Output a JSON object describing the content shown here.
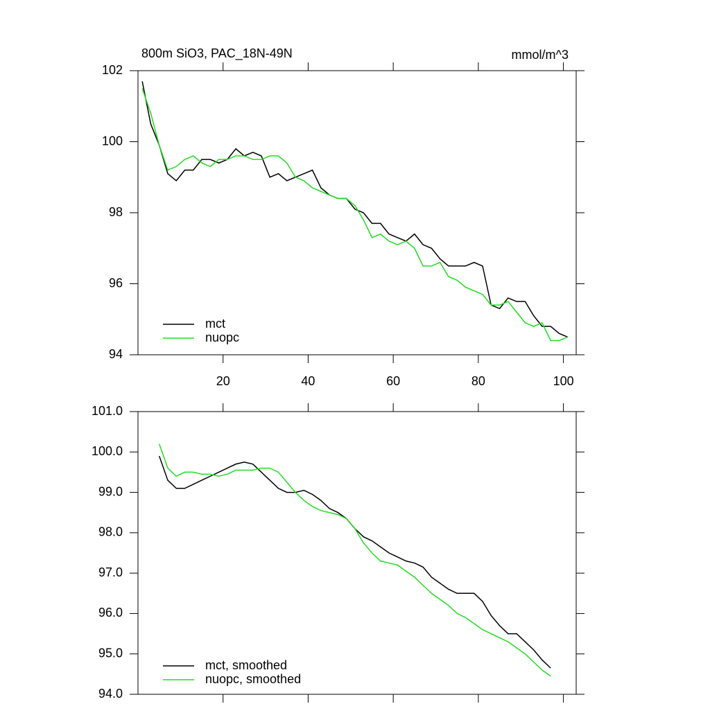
{
  "chart_data": [
    {
      "type": "line",
      "title": "800m SiO3, PAC_18N-49N",
      "units": "mmol/m^3",
      "x": [
        1,
        3,
        5,
        7,
        9,
        11,
        13,
        15,
        17,
        19,
        21,
        23,
        25,
        27,
        29,
        31,
        33,
        35,
        37,
        39,
        41,
        43,
        45,
        47,
        49,
        51,
        53,
        55,
        57,
        59,
        61,
        63,
        65,
        67,
        69,
        71,
        73,
        75,
        77,
        79,
        81,
        83,
        85,
        87,
        89,
        91,
        93,
        95,
        97,
        99,
        101
      ],
      "xlim": [
        0,
        103
      ],
      "xticks": [
        20,
        40,
        60,
        80,
        100
      ],
      "show_xtick_labels": true,
      "ylim": [
        94,
        102
      ],
      "yticks": [
        94,
        96,
        98,
        100,
        102
      ],
      "series": [
        {
          "name": "mct",
          "color": "#000000",
          "values": [
            101.7,
            100.5,
            99.9,
            99.1,
            98.9,
            99.2,
            99.2,
            99.5,
            99.5,
            99.4,
            99.5,
            99.8,
            99.6,
            99.7,
            99.6,
            99.0,
            99.1,
            98.9,
            99.0,
            99.1,
            99.2,
            98.7,
            98.5,
            98.4,
            98.4,
            98.1,
            98.0,
            97.7,
            97.7,
            97.4,
            97.3,
            97.2,
            97.4,
            97.1,
            97.0,
            96.7,
            96.5,
            96.5,
            96.5,
            96.6,
            96.5,
            95.4,
            95.3,
            95.6,
            95.5,
            95.5,
            95.1,
            94.8,
            94.8,
            94.6,
            94.5
          ]
        },
        {
          "name": "nuopc",
          "color": "#22dd22",
          "values": [
            101.5,
            100.8,
            99.9,
            99.2,
            99.3,
            99.5,
            99.6,
            99.4,
            99.3,
            99.5,
            99.5,
            99.6,
            99.6,
            99.5,
            99.5,
            99.6,
            99.6,
            99.4,
            99.0,
            98.9,
            98.7,
            98.6,
            98.5,
            98.4,
            98.4,
            98.2,
            97.8,
            97.3,
            97.4,
            97.2,
            97.1,
            97.2,
            97.0,
            96.5,
            96.5,
            96.6,
            96.2,
            96.1,
            95.9,
            95.8,
            95.7,
            95.4,
            95.4,
            95.5,
            95.2,
            94.9,
            94.8,
            94.9,
            94.4,
            94.4,
            94.5
          ]
        }
      ]
    },
    {
      "type": "line",
      "x": [
        1,
        3,
        5,
        7,
        9,
        11,
        13,
        15,
        17,
        19,
        21,
        23,
        25,
        27,
        29,
        31,
        33,
        35,
        37,
        39,
        41,
        43,
        45,
        47,
        49,
        51,
        53,
        55,
        57,
        59,
        61,
        63,
        65,
        67,
        69,
        71,
        73,
        75,
        77,
        79,
        81,
        83,
        85,
        87,
        89,
        91,
        93,
        95,
        97,
        99,
        101
      ],
      "xlim": [
        0,
        103
      ],
      "xticks": [
        20,
        40,
        60,
        80,
        100
      ],
      "show_xtick_labels": false,
      "ylim": [
        94,
        101
      ],
      "yticks": [
        {
          "value": 94,
          "label": "94.0"
        },
        {
          "value": 95,
          "label": "95.0"
        },
        {
          "value": 96,
          "label": "96.0"
        },
        {
          "value": 97,
          "label": "97.0"
        },
        {
          "value": 98,
          "label": "98.0"
        },
        {
          "value": 99,
          "label": "99.0"
        },
        {
          "value": 100,
          "label": "100.0"
        },
        {
          "value": 101,
          "label": "101.0"
        }
      ],
      "series": [
        {
          "name": "mct, smoothed",
          "color": "#000000",
          "values": [
            null,
            null,
            99.9,
            99.3,
            99.1,
            99.1,
            99.2,
            99.3,
            99.4,
            99.5,
            99.6,
            99.7,
            99.75,
            99.7,
            99.5,
            99.3,
            99.1,
            99.0,
            99.0,
            99.05,
            98.95,
            98.8,
            98.6,
            98.5,
            98.35,
            98.1,
            97.9,
            97.8,
            97.65,
            97.5,
            97.4,
            97.3,
            97.25,
            97.15,
            96.9,
            96.75,
            96.6,
            96.5,
            96.5,
            96.5,
            96.3,
            95.95,
            95.7,
            95.5,
            95.5,
            95.3,
            95.1,
            94.85,
            94.65,
            null,
            null
          ]
        },
        {
          "name": "nuopc, smoothed",
          "color": "#22dd22",
          "values": [
            null,
            null,
            100.2,
            99.6,
            99.4,
            99.5,
            99.5,
            99.45,
            99.45,
            99.4,
            99.45,
            99.55,
            99.55,
            99.55,
            99.6,
            99.6,
            99.5,
            99.25,
            99.0,
            98.8,
            98.65,
            98.55,
            98.5,
            98.45,
            98.35,
            98.1,
            97.75,
            97.5,
            97.3,
            97.25,
            97.2,
            97.05,
            96.9,
            96.7,
            96.5,
            96.35,
            96.2,
            96.0,
            95.9,
            95.75,
            95.6,
            95.5,
            95.4,
            95.3,
            95.15,
            95.0,
            94.8,
            94.6,
            94.45,
            null,
            null
          ]
        }
      ]
    }
  ]
}
